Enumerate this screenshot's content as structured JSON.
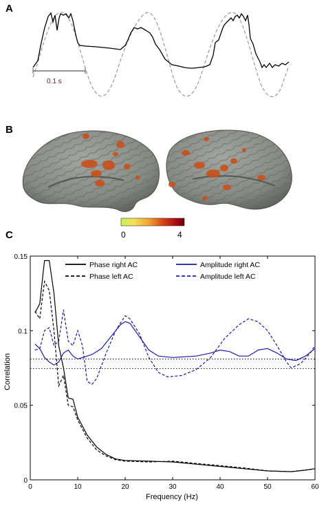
{
  "panels": {
    "a": {
      "letter": "A",
      "scale_bar_label": "0.1 s"
    },
    "b": {
      "letter": "B",
      "colorbar": {
        "min_label": "0",
        "max_label": "4",
        "colors": [
          "#c8f05a",
          "#f5e05a",
          "#f0a030",
          "#d84818",
          "#b01010",
          "#6a0008"
        ]
      },
      "brain_colors": {
        "cortex": "#8a8d87",
        "cortex_shadow": "#5e615c",
        "activation": "#c8501a"
      }
    },
    "c": {
      "letter": "C",
      "ylabel": "Correlation",
      "xlabel": "Frequency (Hz)",
      "legend": {
        "phase_right": "Phase right AC",
        "phase_left": "Phase left AC",
        "amp_right": "Amplitude right AC",
        "amp_left": "Amplitude left AC"
      }
    }
  },
  "chart_data": {
    "type": "line",
    "xlabel": "Frequency (Hz)",
    "ylabel": "Correlation",
    "xlim": [
      0,
      60
    ],
    "ylim": [
      0,
      0.15
    ],
    "x_ticks": [
      0,
      10,
      20,
      30,
      40,
      50,
      60
    ],
    "y_ticks": [
      0,
      0.05,
      0.1,
      0.15
    ],
    "y_tick_labels": [
      "0",
      "0.05",
      "0.1",
      "0.15"
    ],
    "thresholds": [
      0.081,
      0.0745
    ],
    "series": [
      {
        "name": "Phase right AC",
        "color": "#000000",
        "dash": "solid",
        "points": [
          [
            1,
            0.112
          ],
          [
            2,
            0.118
          ],
          [
            3,
            0.147
          ],
          [
            4,
            0.147
          ],
          [
            5,
            0.125
          ],
          [
            6,
            0.09
          ],
          [
            7,
            0.075
          ],
          [
            8,
            0.055
          ],
          [
            9,
            0.054
          ],
          [
            10,
            0.042
          ],
          [
            12,
            0.03
          ],
          [
            14,
            0.022
          ],
          [
            16,
            0.017
          ],
          [
            18,
            0.014
          ],
          [
            20,
            0.013
          ],
          [
            25,
            0.0125
          ],
          [
            30,
            0.012
          ],
          [
            35,
            0.0105
          ],
          [
            40,
            0.009
          ],
          [
            45,
            0.0075
          ],
          [
            50,
            0.006
          ],
          [
            55,
            0.0055
          ],
          [
            58,
            0.0065
          ],
          [
            60,
            0.0075
          ]
        ]
      },
      {
        "name": "Phase left AC",
        "color": "#000000",
        "dash": "dashed",
        "points": [
          [
            1,
            0.113
          ],
          [
            2,
            0.108
          ],
          [
            3,
            0.133
          ],
          [
            4,
            0.127
          ],
          [
            5,
            0.1
          ],
          [
            6,
            0.063
          ],
          [
            7,
            0.07
          ],
          [
            8,
            0.05
          ],
          [
            9,
            0.049
          ],
          [
            10,
            0.04
          ],
          [
            12,
            0.028
          ],
          [
            14,
            0.02
          ],
          [
            16,
            0.016
          ],
          [
            18,
            0.0135
          ],
          [
            20,
            0.0125
          ],
          [
            25,
            0.012
          ],
          [
            30,
            0.0125
          ],
          [
            35,
            0.011
          ],
          [
            40,
            0.0095
          ],
          [
            45,
            0.008
          ],
          [
            50,
            0.006
          ],
          [
            55,
            0.0055
          ],
          [
            58,
            0.0065
          ],
          [
            60,
            0.0075
          ]
        ]
      },
      {
        "name": "Amplitude right AC",
        "color": "#1a1aa8",
        "dash": "solid",
        "points": [
          [
            1,
            0.091
          ],
          [
            2,
            0.088
          ],
          [
            3,
            0.082
          ],
          [
            4,
            0.079
          ],
          [
            5,
            0.077
          ],
          [
            6,
            0.079
          ],
          [
            7,
            0.085
          ],
          [
            8,
            0.087
          ],
          [
            9,
            0.083
          ],
          [
            10,
            0.081
          ],
          [
            11,
            0.082
          ],
          [
            13,
            0.084
          ],
          [
            15,
            0.088
          ],
          [
            17,
            0.096
          ],
          [
            19,
            0.104
          ],
          [
            20,
            0.106
          ],
          [
            21,
            0.105
          ],
          [
            23,
            0.096
          ],
          [
            25,
            0.087
          ],
          [
            27,
            0.083
          ],
          [
            30,
            0.082
          ],
          [
            35,
            0.083
          ],
          [
            38,
            0.085
          ],
          [
            40,
            0.087
          ],
          [
            42,
            0.086
          ],
          [
            44,
            0.083
          ],
          [
            46,
            0.083
          ],
          [
            48,
            0.087
          ],
          [
            50,
            0.088
          ],
          [
            52,
            0.085
          ],
          [
            54,
            0.081
          ],
          [
            56,
            0.08
          ],
          [
            58,
            0.083
          ],
          [
            60,
            0.088
          ]
        ]
      },
      {
        "name": "Amplitude left AC",
        "color": "#1a1aa8",
        "dash": "dashed",
        "points": [
          [
            1,
            0.087
          ],
          [
            2,
            0.088
          ],
          [
            3,
            0.1
          ],
          [
            4,
            0.102
          ],
          [
            5,
            0.09
          ],
          [
            6,
            0.093
          ],
          [
            7,
            0.114
          ],
          [
            8,
            0.093
          ],
          [
            9,
            0.09
          ],
          [
            10,
            0.1
          ],
          [
            11,
            0.09
          ],
          [
            12,
            0.066
          ],
          [
            13,
            0.064
          ],
          [
            14,
            0.068
          ],
          [
            16,
            0.085
          ],
          [
            18,
            0.1
          ],
          [
            20,
            0.11
          ],
          [
            21,
            0.108
          ],
          [
            23,
            0.098
          ],
          [
            25,
            0.082
          ],
          [
            27,
            0.072
          ],
          [
            29,
            0.069
          ],
          [
            32,
            0.07
          ],
          [
            35,
            0.074
          ],
          [
            38,
            0.082
          ],
          [
            41,
            0.095
          ],
          [
            44,
            0.104
          ],
          [
            46,
            0.108
          ],
          [
            48,
            0.106
          ],
          [
            50,
            0.1
          ],
          [
            52,
            0.09
          ],
          [
            54,
            0.079
          ],
          [
            55,
            0.075
          ],
          [
            57,
            0.078
          ],
          [
            59,
            0.085
          ],
          [
            60,
            0.09
          ]
        ]
      }
    ]
  }
}
